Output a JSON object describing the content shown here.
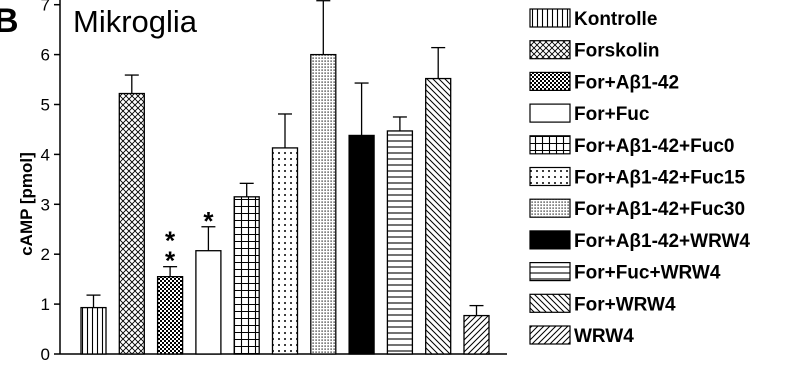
{
  "panel_letter": "B",
  "chart_data": {
    "type": "bar",
    "title": "Mikroglia",
    "ylabel": "cAMP [pmol]",
    "xlabel": "",
    "ylim": [
      0,
      7.5
    ],
    "yticks": [
      "0",
      "1",
      "2",
      "3",
      "4",
      "5",
      "6",
      "7"
    ],
    "legend_position": "right",
    "categories": [
      "Kontrolle",
      "Forskolin",
      "For+Aβ1-42",
      "For+Fuc",
      "For+Aβ1-42+Fuc0",
      "For+Aβ1-42+Fuc15",
      "For+Aβ1-42+Fuc30",
      "For+Aβ1-42+WRW4",
      "For+Fuc+WRW4",
      "For+WRW4",
      "WRW4"
    ],
    "values": [
      0.93,
      5.22,
      1.55,
      2.07,
      3.15,
      4.13,
      6.0,
      4.38,
      4.47,
      5.52,
      0.77
    ],
    "errors": [
      0.25,
      0.37,
      0.2,
      0.48,
      0.27,
      0.68,
      1.08,
      1.05,
      0.28,
      0.62,
      0.2
    ],
    "patterns": [
      "vlines",
      "crosshatch",
      "checker",
      "blank",
      "grid",
      "dots",
      "finedots",
      "solid",
      "hlines",
      "diag-back",
      "diag-fwd"
    ],
    "significance": [
      "",
      "",
      "*\n*",
      "*",
      "",
      "",
      "",
      "",
      "",
      "",
      ""
    ]
  }
}
